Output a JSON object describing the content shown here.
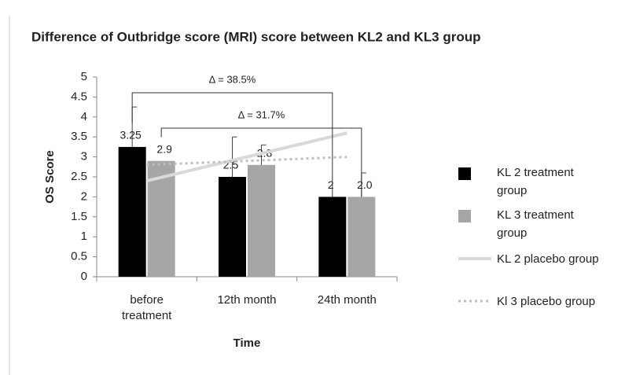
{
  "chart_data": {
    "type": "bar",
    "title": "Difference of Outbridge score (MRI)  score between KL2 and KL3 group",
    "x_label": "Time",
    "y_label": "OS Score",
    "categories": [
      "before treatment",
      "12th month",
      "24th month"
    ],
    "ylim": [
      0,
      5
    ],
    "yticks": [
      0,
      0.5,
      1,
      1.5,
      2,
      2.5,
      3,
      3.5,
      4,
      4.5,
      5
    ],
    "grid": false,
    "legend": "right",
    "series": [
      {
        "name": "KL 2 treatment group",
        "type": "bar",
        "color": "#000000",
        "values": [
          3.25,
          2.5,
          2
        ],
        "errors": [
          1.0,
          1.0,
          null
        ],
        "value_labels": [
          "3.25",
          "2.5",
          "2"
        ]
      },
      {
        "name": "KL 3 treatment group",
        "type": "bar",
        "color": "#a6a6a6",
        "values": [
          2.9,
          2.8,
          2
        ],
        "errors": [
          null,
          0.5,
          0.6
        ],
        "value_labels": [
          "2.9",
          "2.8",
          "2.0"
        ]
      },
      {
        "name": "KL 2 placebo group",
        "type": "line",
        "color": "#d9d9d9",
        "dashed": false,
        "values": [
          2.4,
          3.0,
          3.6
        ]
      },
      {
        "name": "Kl 3 placebo group",
        "type": "line",
        "color": "#bfbfbf",
        "dashed": true,
        "values": [
          2.8,
          2.9,
          3.0
        ]
      }
    ],
    "annotations": [
      "Δ = 38.5%",
      "Δ = 31.7%"
    ]
  }
}
